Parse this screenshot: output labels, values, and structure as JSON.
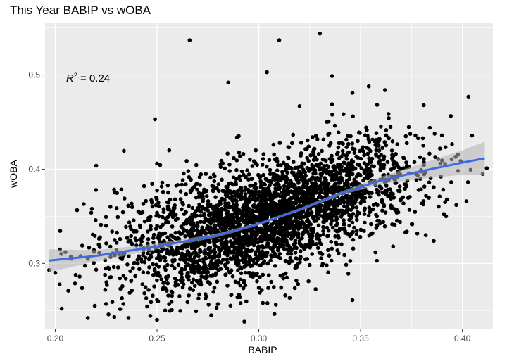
{
  "chart_data": {
    "type": "scatter",
    "title": "This Year BABIP vs wOBA",
    "xlabel": "BABIP",
    "ylabel": "wOBA",
    "xlim": [
      0.195,
      0.415
    ],
    "ylim": [
      0.23,
      0.555
    ],
    "x_ticks": [
      0.2,
      0.25,
      0.3,
      0.35,
      0.4
    ],
    "x_tick_labels": [
      "0.20",
      "0.25",
      "0.30",
      "0.35",
      "0.40"
    ],
    "y_ticks": [
      0.3,
      0.4,
      0.5
    ],
    "y_tick_labels": [
      "0.3",
      "0.4",
      "0.5"
    ],
    "grid": true,
    "background": "#ebebeb",
    "point_color": "#000000",
    "trend_color": "#4169e1",
    "ribbon_color": "#b3b3b3",
    "annotation": {
      "prefix": "R",
      "sup": "2",
      "text": " = 0.24",
      "x": 0.2,
      "y": 0.5
    },
    "trend": {
      "x": [
        0.197,
        0.22,
        0.25,
        0.28,
        0.3,
        0.32,
        0.34,
        0.36,
        0.38,
        0.4,
        0.412
      ],
      "y": [
        0.303,
        0.308,
        0.318,
        0.33,
        0.342,
        0.357,
        0.374,
        0.388,
        0.398,
        0.407,
        0.412
      ],
      "band": [
        0.012,
        0.006,
        0.003,
        0.002,
        0.0015,
        0.0015,
        0.002,
        0.004,
        0.008,
        0.013,
        0.018
      ]
    },
    "points_count": 3200,
    "points": [
      [
        0.266,
        0.537
      ],
      [
        0.31,
        0.537
      ],
      [
        0.33,
        0.544
      ],
      [
        0.304,
        0.503
      ],
      [
        0.336,
        0.499
      ],
      [
        0.285,
        0.492
      ],
      [
        0.354,
        0.488
      ],
      [
        0.362,
        0.484
      ],
      [
        0.403,
        0.477
      ],
      [
        0.346,
        0.481
      ],
      [
        0.249,
        0.453
      ],
      [
        0.381,
        0.468
      ],
      [
        0.32,
        0.467
      ],
      [
        0.336,
        0.469
      ],
      [
        0.256,
        0.42
      ],
      [
        0.25,
        0.406
      ],
      [
        0.412,
        0.401
      ],
      [
        0.402,
        0.366
      ],
      [
        0.389,
        0.422
      ],
      [
        0.384,
        0.444
      ],
      [
        0.22,
        0.378
      ],
      [
        0.214,
        0.363
      ],
      [
        0.218,
        0.358
      ],
      [
        0.2,
        0.29
      ],
      [
        0.197,
        0.293
      ],
      [
        0.203,
        0.31
      ],
      [
        0.208,
        0.305
      ],
      [
        0.212,
        0.286
      ],
      [
        0.216,
        0.242
      ],
      [
        0.229,
        0.243
      ],
      [
        0.236,
        0.242
      ],
      [
        0.25,
        0.24
      ],
      [
        0.254,
        0.25
      ],
      [
        0.225,
        0.257
      ],
      [
        0.232,
        0.273
      ],
      [
        0.346,
        0.261
      ],
      [
        0.302,
        0.258
      ],
      [
        0.313,
        0.266
      ],
      [
        0.302,
        0.288
      ],
      [
        0.344,
        0.289
      ],
      [
        0.225,
        0.34
      ],
      [
        0.205,
        0.312
      ],
      [
        0.41,
        0.395
      ],
      [
        0.397,
        0.362
      ],
      [
        0.392,
        0.35
      ],
      [
        0.372,
        0.333
      ],
      [
        0.382,
        0.33
      ],
      [
        0.366,
        0.318
      ],
      [
        0.374,
        0.357
      ],
      [
        0.348,
        0.35
      ]
    ]
  }
}
